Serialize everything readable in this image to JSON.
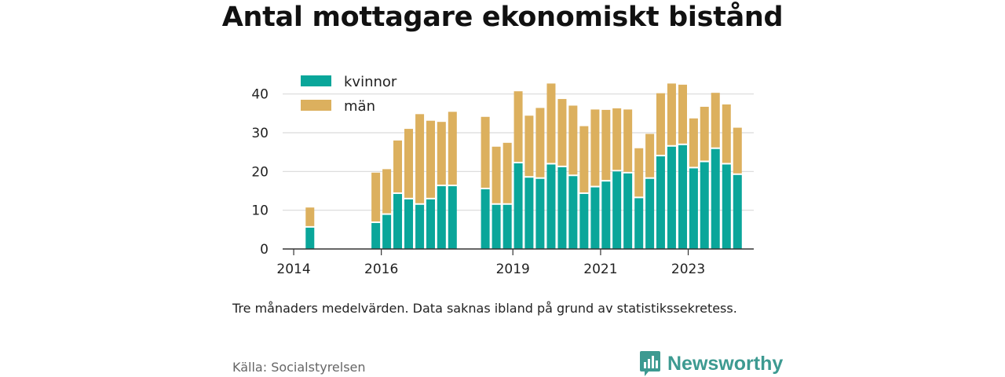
{
  "title": "Antal mottagare ekonomiskt bistånd",
  "note": "Tre månaders medelvärden. Data saknas ibland på grund av statistikssekretess.",
  "source": "Källa: Socialstyrelsen",
  "brand": {
    "name": "Newsworthy",
    "icon": "bar-chart-chat-icon",
    "color": "#3d9a91"
  },
  "colors": {
    "kvinnor": "#0aa69a",
    "man": "#dcb05e",
    "grid": "#d9d9d9",
    "axis": "#333333"
  },
  "chart_data": {
    "type": "bar",
    "stacked": true,
    "x_unit": "quarter",
    "xlim": [
      "2013-10-01",
      "2024-06-30"
    ],
    "ylim": [
      0,
      45
    ],
    "yticks": [
      0,
      10,
      20,
      30,
      40
    ],
    "xticks": [
      {
        "label": "2014",
        "date": "2014-01-01"
      },
      {
        "label": "2016",
        "date": "2016-01-01"
      },
      {
        "label": "2019",
        "date": "2019-01-01"
      },
      {
        "label": "2021",
        "date": "2021-01-01"
      },
      {
        "label": "2023",
        "date": "2023-01-01"
      }
    ],
    "legend_position": "top-left",
    "grid": true,
    "series": [
      {
        "name": "kvinnor",
        "color": "#0aa69a"
      },
      {
        "name": "män",
        "color": "#dcb05e"
      }
    ],
    "points": [
      {
        "q": "2014-Q2",
        "kvinnor": 5.5,
        "man": 5.2
      },
      {
        "q": "2015-Q4",
        "kvinnor": 6.7,
        "man": 13.0
      },
      {
        "q": "2016-Q1",
        "kvinnor": 8.8,
        "man": 11.8
      },
      {
        "q": "2016-Q2",
        "kvinnor": 14.2,
        "man": 13.8
      },
      {
        "q": "2016-Q3",
        "kvinnor": 12.8,
        "man": 18.2
      },
      {
        "q": "2016-Q4",
        "kvinnor": 11.4,
        "man": 23.4
      },
      {
        "q": "2017-Q1",
        "kvinnor": 12.8,
        "man": 20.3
      },
      {
        "q": "2017-Q2",
        "kvinnor": 16.2,
        "man": 16.6
      },
      {
        "q": "2017-Q3",
        "kvinnor": 16.2,
        "man": 19.2
      },
      {
        "q": "2018-Q2",
        "kvinnor": 15.4,
        "man": 18.7
      },
      {
        "q": "2018-Q3",
        "kvinnor": 11.4,
        "man": 15.0
      },
      {
        "q": "2018-Q4",
        "kvinnor": 11.4,
        "man": 16.0
      },
      {
        "q": "2019-Q1",
        "kvinnor": 22.1,
        "man": 18.6
      },
      {
        "q": "2019-Q2",
        "kvinnor": 18.4,
        "man": 16.0
      },
      {
        "q": "2019-Q3",
        "kvinnor": 18.1,
        "man": 18.3
      },
      {
        "q": "2019-Q4",
        "kvinnor": 21.8,
        "man": 20.9
      },
      {
        "q": "2020-Q1",
        "kvinnor": 21.1,
        "man": 17.6
      },
      {
        "q": "2020-Q2",
        "kvinnor": 18.8,
        "man": 18.2
      },
      {
        "q": "2020-Q3",
        "kvinnor": 14.2,
        "man": 17.5
      },
      {
        "q": "2020-Q4",
        "kvinnor": 15.9,
        "man": 20.1
      },
      {
        "q": "2021-Q1",
        "kvinnor": 17.4,
        "man": 18.5
      },
      {
        "q": "2021-Q2",
        "kvinnor": 20.0,
        "man": 16.3
      },
      {
        "q": "2021-Q3",
        "kvinnor": 19.5,
        "man": 16.5
      },
      {
        "q": "2021-Q4",
        "kvinnor": 13.1,
        "man": 12.9
      },
      {
        "q": "2022-Q1",
        "kvinnor": 18.1,
        "man": 11.6
      },
      {
        "q": "2022-Q2",
        "kvinnor": 23.9,
        "man": 16.3
      },
      {
        "q": "2022-Q3",
        "kvinnor": 26.4,
        "man": 16.3
      },
      {
        "q": "2022-Q4",
        "kvinnor": 26.8,
        "man": 15.6
      },
      {
        "q": "2023-Q1",
        "kvinnor": 20.8,
        "man": 12.9
      },
      {
        "q": "2023-Q2",
        "kvinnor": 22.4,
        "man": 14.3
      },
      {
        "q": "2023-Q3",
        "kvinnor": 25.8,
        "man": 14.5
      },
      {
        "q": "2023-Q4",
        "kvinnor": 21.8,
        "man": 15.5
      },
      {
        "q": "2024-Q1",
        "kvinnor": 19.1,
        "man": 12.2
      }
    ]
  }
}
